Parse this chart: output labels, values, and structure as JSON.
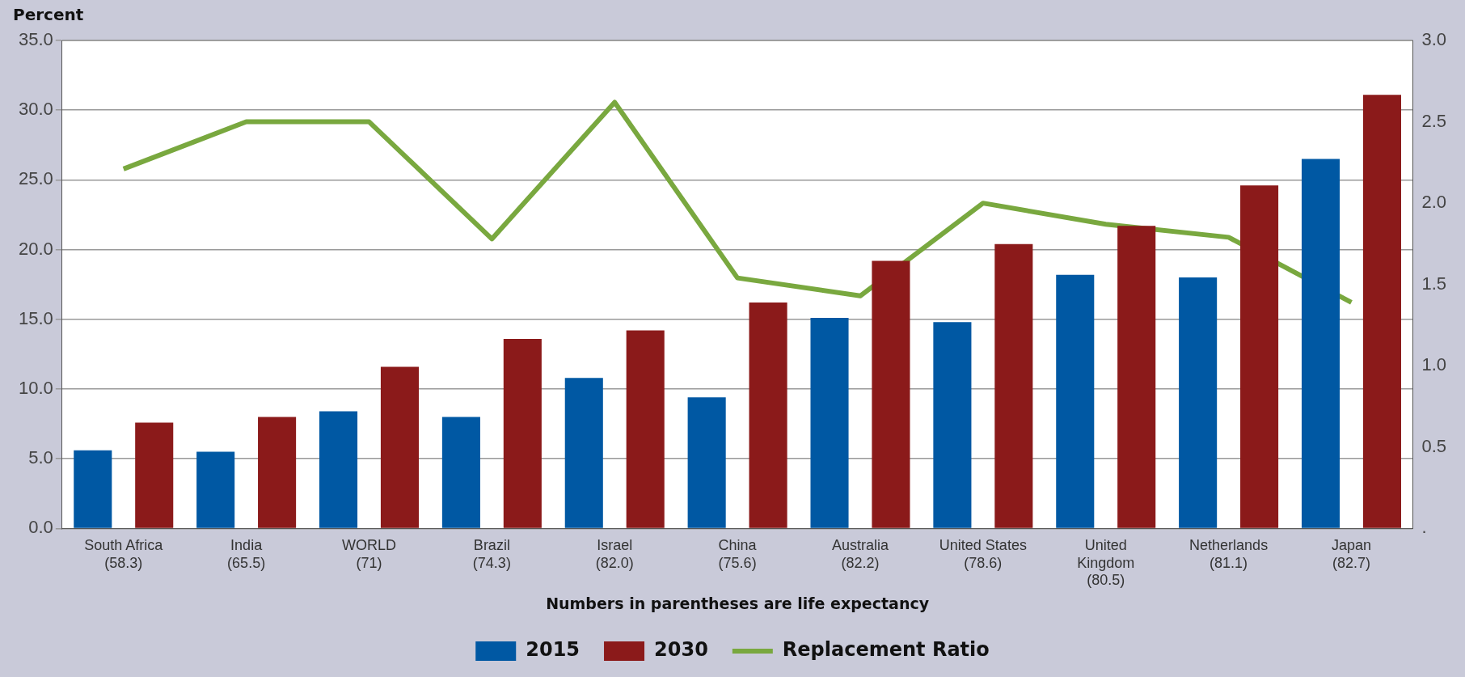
{
  "chart_data": {
    "type": "bar",
    "ylabel": "Percent",
    "xlabel": "Numbers in parentheses are life expectancy",
    "categories": [
      "South Africa\n(58.3)",
      "India\n(65.5)",
      "WORLD\n(71)",
      "Brazil\n(74.3)",
      "Israel\n(82.0)",
      "China\n(75.6)",
      "Australia\n(82.2)",
      "United States\n(78.6)",
      "United\nKingdom\n(80.5)",
      "Netherlands\n(81.1)",
      "Japan\n(82.7)"
    ],
    "series": [
      {
        "name": "2015",
        "color": "#0058a3",
        "values": [
          5.6,
          5.5,
          8.4,
          8.0,
          10.8,
          9.4,
          15.1,
          14.8,
          18.2,
          18.0,
          26.5
        ]
      },
      {
        "name": "2030",
        "color": "#8b1a1a",
        "values": [
          7.6,
          8.0,
          11.6,
          13.6,
          14.2,
          16.2,
          19.2,
          20.4,
          21.7,
          24.6,
          31.1
        ]
      },
      {
        "name": "Replacement Ratio",
        "type": "line",
        "axis": "y2",
        "color": "#79a83f",
        "values": [
          2.21,
          2.5,
          2.5,
          1.78,
          2.62,
          1.54,
          1.43,
          2.0,
          1.87,
          1.79,
          1.39
        ]
      }
    ],
    "ylim": [
      0,
      35
    ],
    "yticks": [
      {
        "value": 0,
        "label": "0.0"
      },
      {
        "value": 5,
        "label": "5.0"
      },
      {
        "value": 10,
        "label": "10.0"
      },
      {
        "value": 15,
        "label": "15.0"
      },
      {
        "value": 20,
        "label": "20.0"
      },
      {
        "value": 25,
        "label": "25.0"
      },
      {
        "value": 30,
        "label": "30.0"
      },
      {
        "value": 35,
        "label": "35.0"
      }
    ],
    "y2lim": [
      0,
      3
    ],
    "y2ticks": [
      {
        "value": 0,
        "label": "."
      },
      {
        "value": 0.5,
        "label": "0.5"
      },
      {
        "value": 1,
        "label": "1.0"
      },
      {
        "value": 1.5,
        "label": "1.5"
      },
      {
        "value": 2,
        "label": "2.0"
      },
      {
        "value": 2.5,
        "label": "2.5"
      },
      {
        "value": 3,
        "label": "3.0"
      }
    ],
    "grid": "y",
    "legend": "bottom",
    "marker": "none",
    "line_style": "solid"
  }
}
